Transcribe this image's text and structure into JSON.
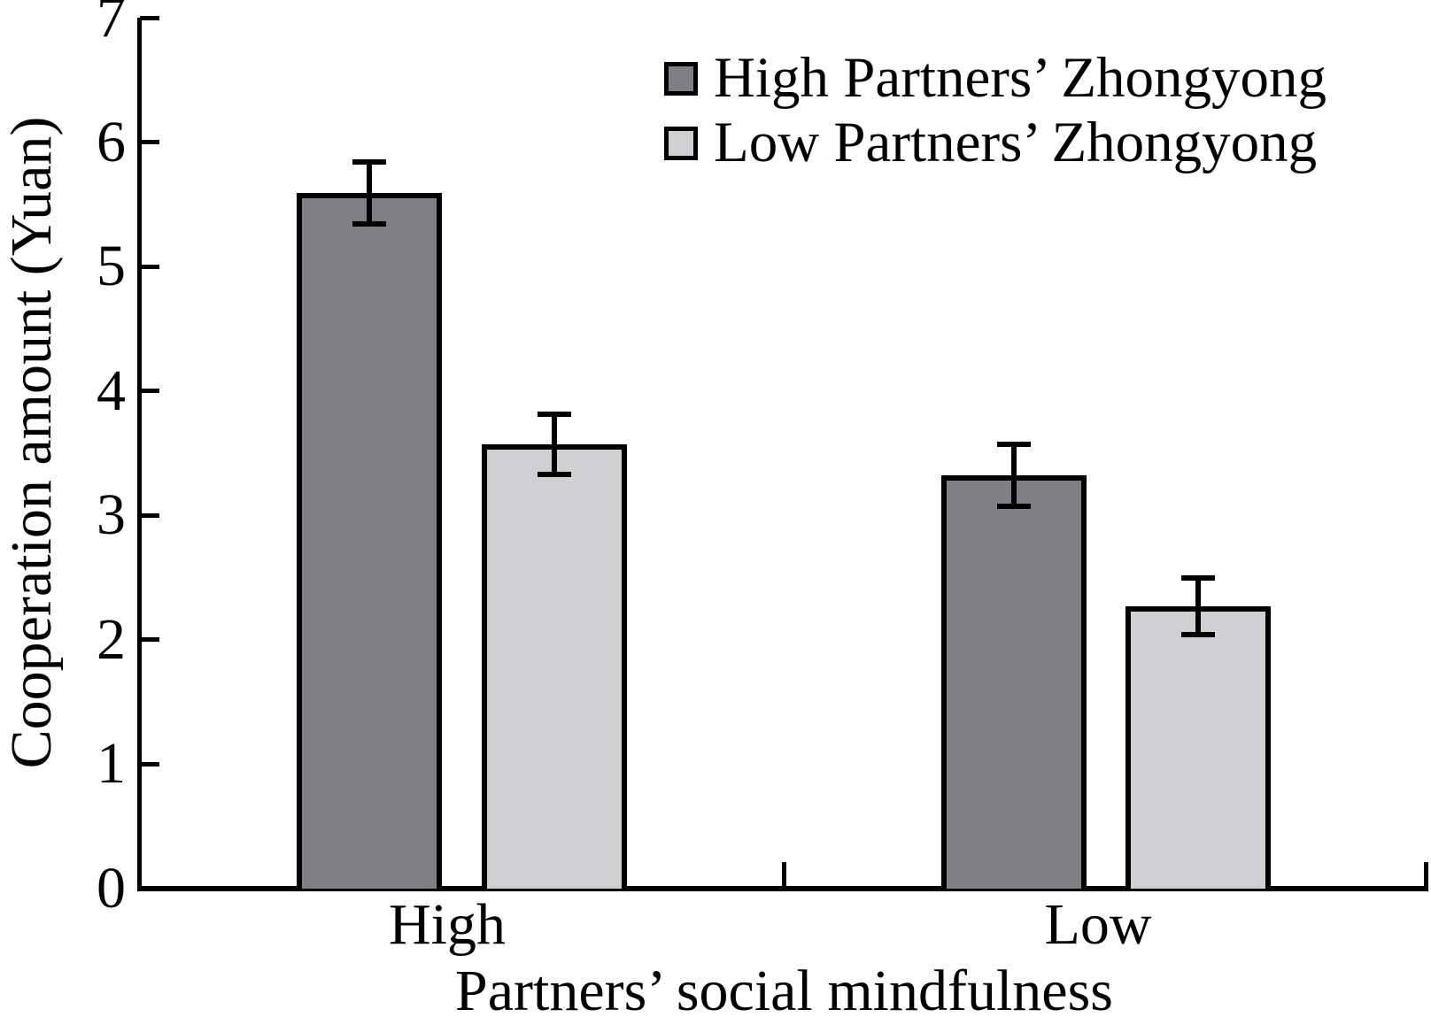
{
  "figure": {
    "background": "#ffffff",
    "text_color": "#000000",
    "axis_color": "#000000"
  },
  "chart_data": {
    "type": "bar",
    "title": "",
    "xlabel": "Partners’ social mindfulness",
    "ylabel": "Cooperation amount (Yuan)",
    "categories": [
      "High",
      "Low"
    ],
    "series": [
      {
        "name": "High Partners’ Zhongyong",
        "color": "#808084",
        "values": [
          5.59,
          3.32
        ],
        "errors": [
          0.25,
          0.25
        ]
      },
      {
        "name": "Low Partners’ Zhongyong",
        "color": "#d0d0d2",
        "values": [
          3.57,
          2.27
        ],
        "errors": [
          0.24,
          0.23
        ]
      }
    ],
    "ylim": [
      0,
      7
    ],
    "yticks": [
      "0",
      "1",
      "2",
      "3",
      "4",
      "5",
      "6",
      "7"
    ],
    "grid": false,
    "error_bars": true,
    "legend_position": "upper-right-inside"
  }
}
